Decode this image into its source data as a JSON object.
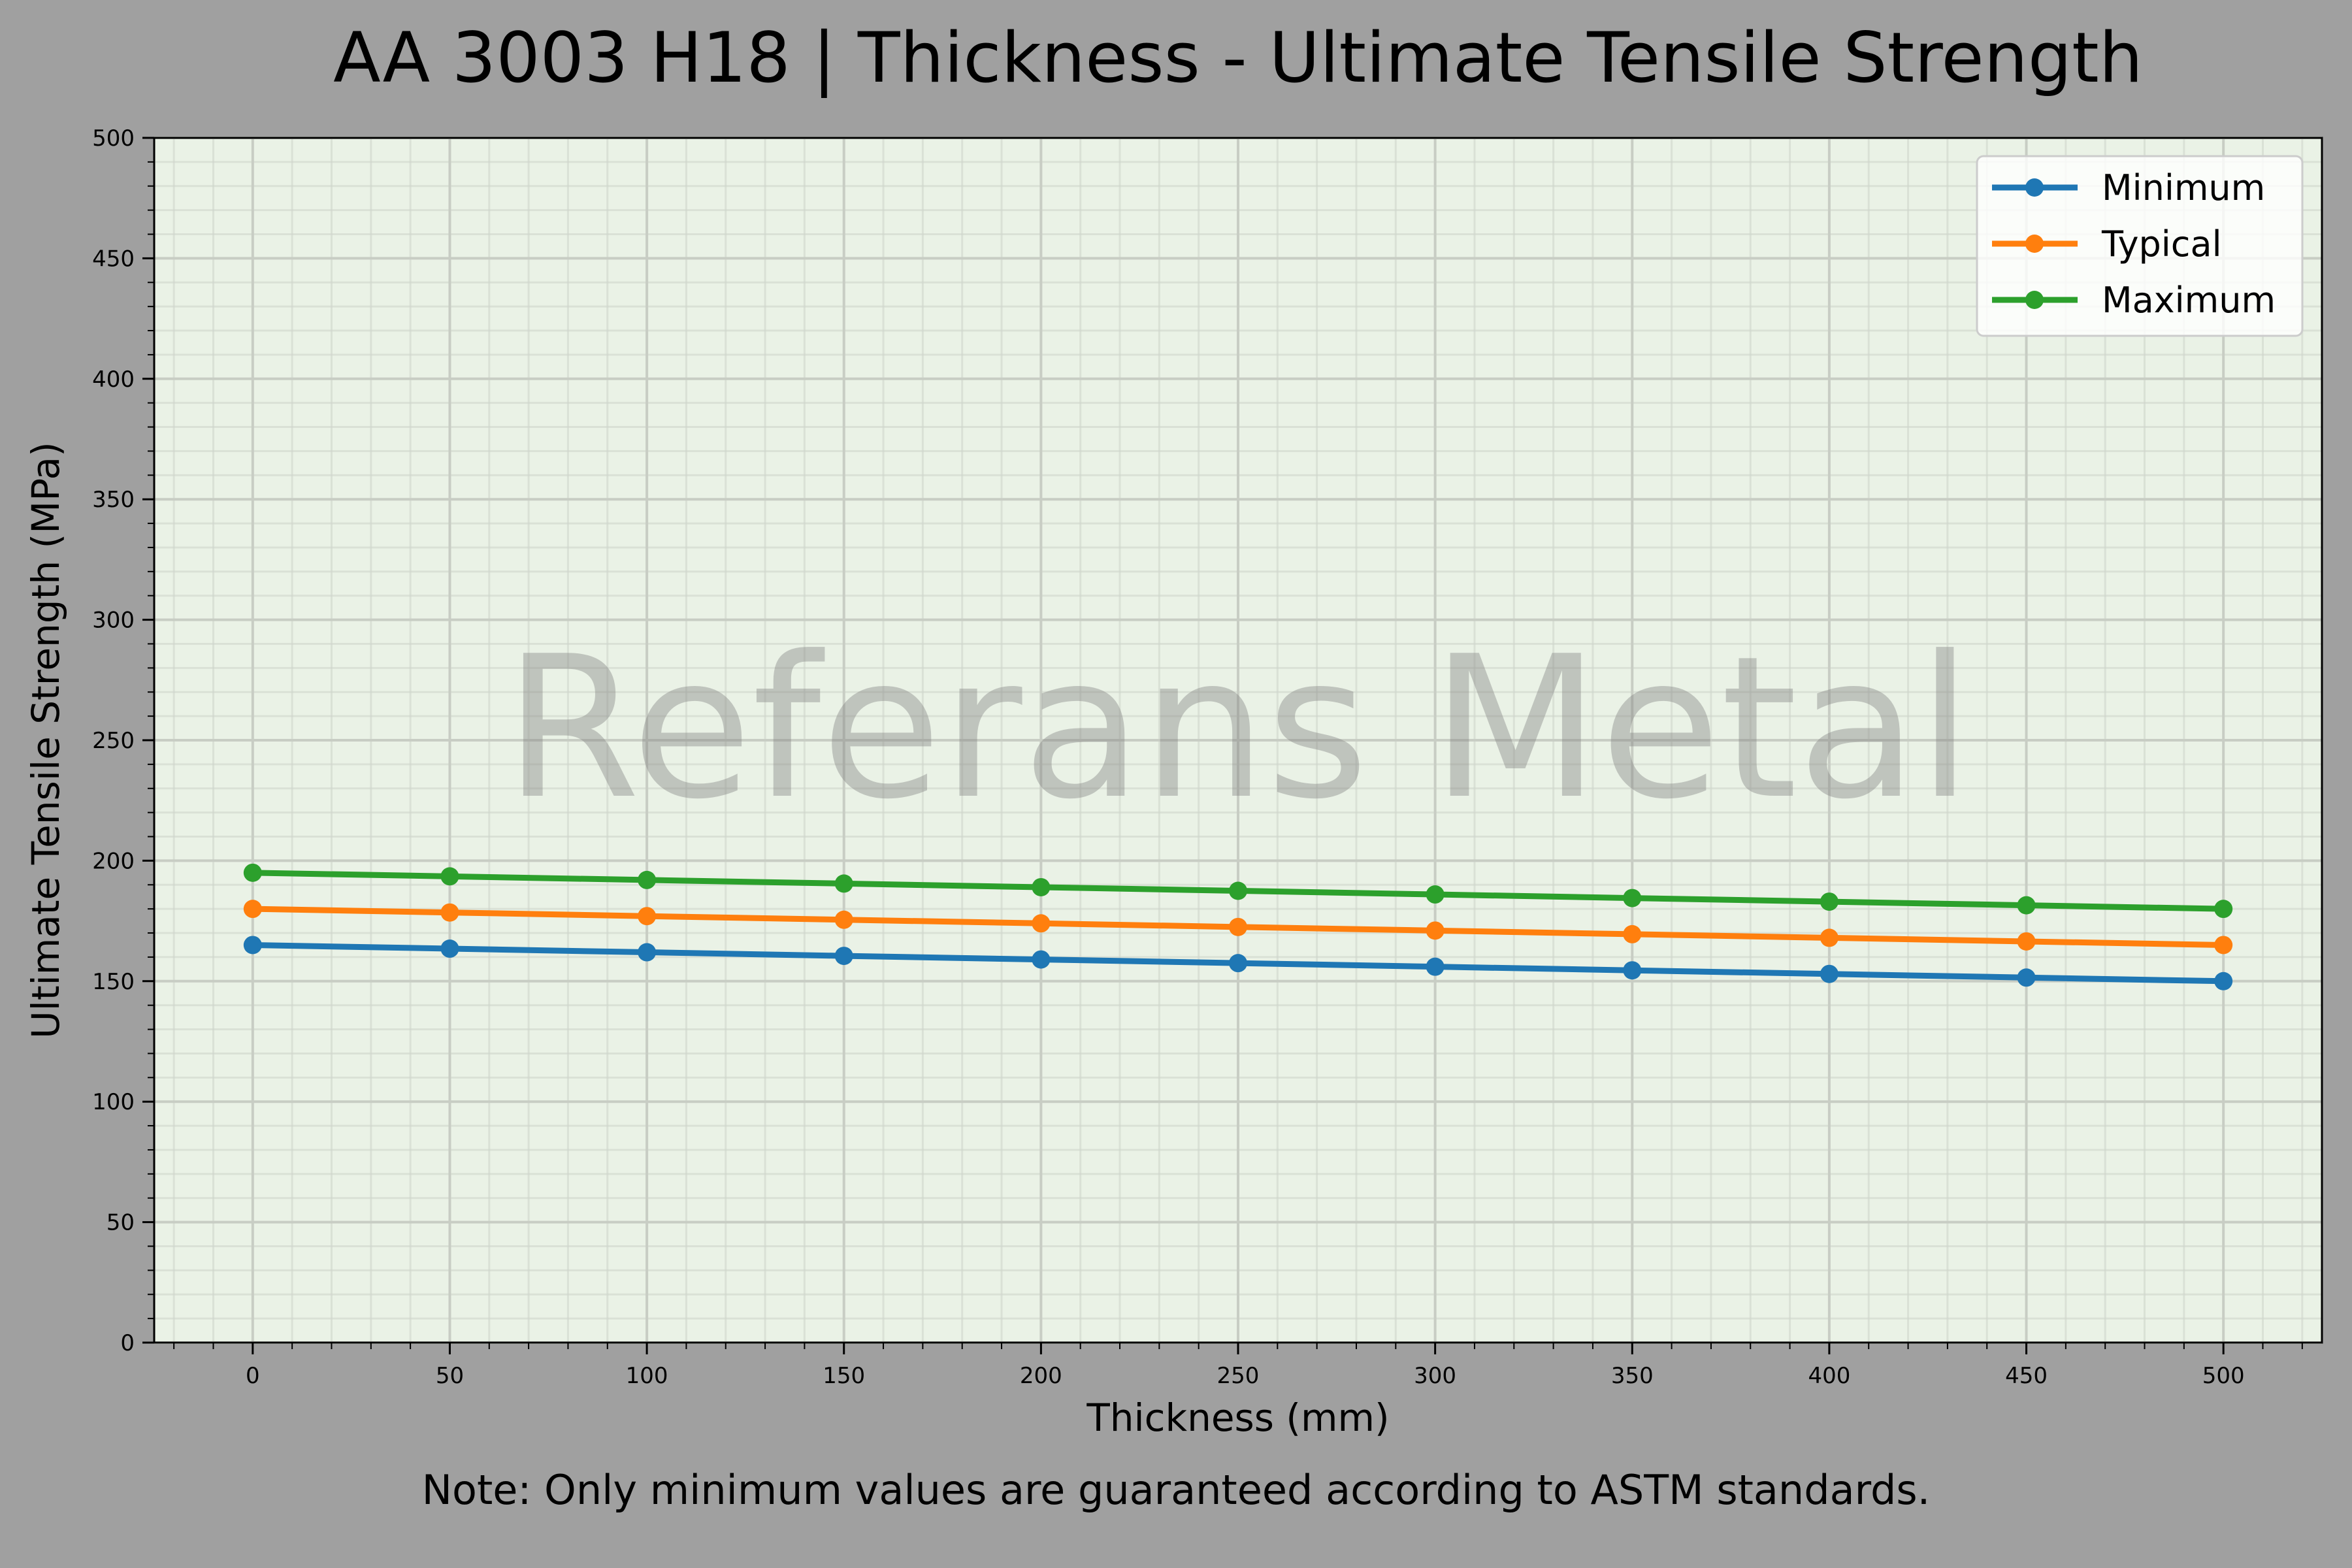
{
  "chart_data": {
    "type": "line",
    "title": "AA 3003 H18 | Thickness - Ultimate Tensile Strength",
    "xlabel": "Thickness (mm)",
    "ylabel": "Ultimate Tensile Strength (MPa)",
    "note": "Note: Only minimum values are guaranteed according to ASTM standards.",
    "watermark": "Referans Metal",
    "xlim": [
      -25,
      525
    ],
    "ylim": [
      0,
      500
    ],
    "xticks": [
      0,
      50,
      100,
      150,
      200,
      250,
      300,
      350,
      400,
      450,
      500
    ],
    "yticks": [
      0,
      50,
      100,
      150,
      200,
      250,
      300,
      350,
      400,
      450,
      500
    ],
    "grid": true,
    "minor_grid": true,
    "legend_position": "top-right",
    "x": [
      0,
      50,
      100,
      150,
      200,
      250,
      300,
      350,
      400,
      450,
      500
    ],
    "series": [
      {
        "name": "Minimum",
        "color": "#1f77b4",
        "values": [
          165,
          163.5,
          162,
          160.5,
          159,
          157.5,
          156,
          154.5,
          153,
          151.5,
          150
        ]
      },
      {
        "name": "Typical",
        "color": "#ff7f0e",
        "values": [
          180,
          178.5,
          177,
          175.5,
          174,
          172.5,
          171,
          169.5,
          168,
          166.5,
          165
        ]
      },
      {
        "name": "Maximum",
        "color": "#2ca02c",
        "values": [
          195,
          193.5,
          192,
          190.5,
          189,
          187.5,
          186,
          184.5,
          183,
          181.5,
          180
        ]
      }
    ],
    "colors": {
      "background": "#a0a0a0",
      "plot_background": "#eaf2e6"
    }
  }
}
